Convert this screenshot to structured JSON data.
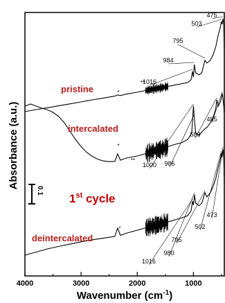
{
  "chart_data": {
    "type": "line",
    "xlabel": "Wavenumber (cm",
    "xlabel_sup": "-1",
    "xlabel_end": ")",
    "ylabel": "Absorbance (a.u.)",
    "xlim": [
      4000,
      450
    ],
    "x_reversed": true,
    "x_ticks": [
      {
        "value": 4000,
        "label": "4000"
      },
      {
        "value": 3000,
        "label": "3000"
      },
      {
        "value": 2000,
        "label": "2000"
      },
      {
        "value": 1000,
        "label": "1000"
      }
    ],
    "scale_bar": {
      "label": "0.1",
      "value": 0.1
    },
    "cycle_label": {
      "text": "1",
      "sup": "st",
      "rest": " cycle"
    },
    "impurity_marks": [
      "*",
      "**",
      "*",
      "**",
      "*",
      "**"
    ],
    "colors": {
      "label": "#b71c1c",
      "cycle": "#c00000",
      "line": "#000000"
    },
    "series": [
      {
        "name": "pristine",
        "peaks": [
          "475",
          "503",
          "795",
          "984",
          "1016"
        ],
        "points": [
          [
            4000,
            0.07
          ],
          [
            3800,
            0.085
          ],
          [
            3600,
            0.098
          ],
          [
            3400,
            0.112
          ],
          [
            3200,
            0.126
          ],
          [
            3000,
            0.14
          ],
          [
            2800,
            0.155
          ],
          [
            2600,
            0.168
          ],
          [
            2400,
            0.182
          ],
          [
            2350,
            0.19
          ],
          [
            2300,
            0.186
          ],
          [
            2200,
            0.196
          ],
          [
            2000,
            0.21
          ],
          [
            1800,
            0.226
          ],
          [
            1700,
            0.234
          ],
          [
            1600,
            0.24
          ],
          [
            1500,
            0.248
          ],
          [
            1400,
            0.256
          ],
          [
            1300,
            0.264
          ],
          [
            1200,
            0.272
          ],
          [
            1100,
            0.28
          ],
          [
            1040,
            0.3
          ],
          [
            1016,
            0.36
          ],
          [
            1000,
            0.32
          ],
          [
            984,
            0.41
          ],
          [
            960,
            0.35
          ],
          [
            900,
            0.335
          ],
          [
            850,
            0.35
          ],
          [
            795,
            0.44
          ],
          [
            760,
            0.42
          ],
          [
            700,
            0.44
          ],
          [
            650,
            0.48
          ],
          [
            600,
            0.54
          ],
          [
            560,
            0.62
          ],
          [
            520,
            0.68
          ],
          [
            503,
            0.72
          ],
          [
            490,
            0.7
          ],
          [
            475,
            0.74
          ],
          [
            460,
            0.7
          ],
          [
            450,
            0.5
          ]
        ]
      },
      {
        "name": "intercalated",
        "peaks": [
          "485",
          "583",
          "986",
          "1000"
        ],
        "points": [
          [
            4000,
            0.3
          ],
          [
            3900,
            0.31
          ],
          [
            3800,
            0.3
          ],
          [
            3700,
            0.29
          ],
          [
            3600,
            0.282
          ],
          [
            3500,
            0.27
          ],
          [
            3400,
            0.25
          ],
          [
            3300,
            0.22
          ],
          [
            3200,
            0.18
          ],
          [
            3100,
            0.14
          ],
          [
            3000,
            0.105
          ],
          [
            2900,
            0.078
          ],
          [
            2800,
            0.058
          ],
          [
            2700,
            0.044
          ],
          [
            2600,
            0.036
          ],
          [
            2500,
            0.033
          ],
          [
            2400,
            0.034
          ],
          [
            2350,
            0.07
          ],
          [
            2300,
            0.04
          ],
          [
            2200,
            0.05
          ],
          [
            2000,
            0.06
          ],
          [
            1800,
            0.075
          ],
          [
            1700,
            0.085
          ],
          [
            1600,
            0.09
          ],
          [
            1500,
            0.1
          ],
          [
            1400,
            0.11
          ],
          [
            1300,
            0.118
          ],
          [
            1200,
            0.125
          ],
          [
            1100,
            0.14
          ],
          [
            1030,
            0.17
          ],
          [
            1000,
            0.3
          ],
          [
            986,
            0.25
          ],
          [
            960,
            0.17
          ],
          [
            900,
            0.16
          ],
          [
            850,
            0.175
          ],
          [
            800,
            0.19
          ],
          [
            750,
            0.2
          ],
          [
            700,
            0.22
          ],
          [
            650,
            0.245
          ],
          [
            600,
            0.29
          ],
          [
            583,
            0.33
          ],
          [
            560,
            0.3
          ],
          [
            520,
            0.32
          ],
          [
            485,
            0.36
          ],
          [
            460,
            0.3
          ],
          [
            450,
            0.26
          ]
        ]
      },
      {
        "name": "deintercalated",
        "peaks": [
          "473",
          "502",
          "795",
          "980",
          "1016"
        ],
        "points": [
          [
            4000,
            0.03
          ],
          [
            3800,
            0.045
          ],
          [
            3600,
            0.06
          ],
          [
            3400,
            0.072
          ],
          [
            3200,
            0.083
          ],
          [
            3000,
            0.094
          ],
          [
            2800,
            0.104
          ],
          [
            2600,
            0.112
          ],
          [
            2400,
            0.12
          ],
          [
            2350,
            0.16
          ],
          [
            2300,
            0.125
          ],
          [
            2200,
            0.135
          ],
          [
            2000,
            0.15
          ],
          [
            1800,
            0.165
          ],
          [
            1700,
            0.172
          ],
          [
            1600,
            0.178
          ],
          [
            1500,
            0.186
          ],
          [
            1400,
            0.194
          ],
          [
            1300,
            0.202
          ],
          [
            1200,
            0.21
          ],
          [
            1100,
            0.22
          ],
          [
            1040,
            0.245
          ],
          [
            1016,
            0.29
          ],
          [
            1000,
            0.27
          ],
          [
            980,
            0.32
          ],
          [
            960,
            0.28
          ],
          [
            900,
            0.268
          ],
          [
            850,
            0.28
          ],
          [
            795,
            0.33
          ],
          [
            760,
            0.31
          ],
          [
            700,
            0.33
          ],
          [
            650,
            0.36
          ],
          [
            600,
            0.4
          ],
          [
            560,
            0.45
          ],
          [
            520,
            0.49
          ],
          [
            502,
            0.52
          ],
          [
            490,
            0.5
          ],
          [
            473,
            0.54
          ],
          [
            460,
            0.5
          ],
          [
            450,
            0.38
          ]
        ]
      }
    ]
  }
}
